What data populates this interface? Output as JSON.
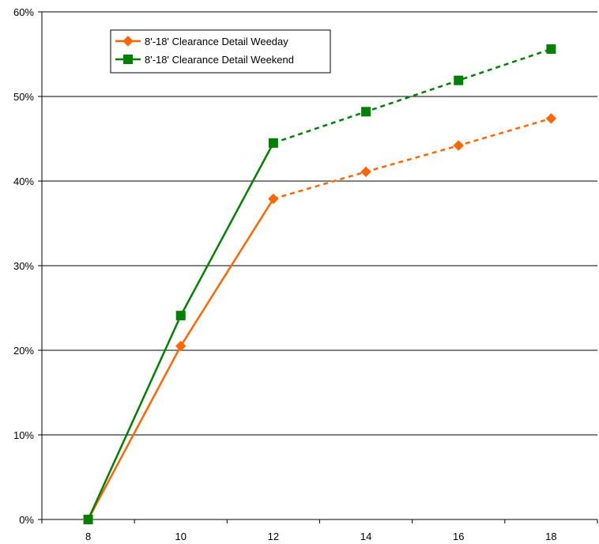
{
  "chart_data": {
    "type": "line",
    "x": [
      8,
      10,
      12,
      14,
      16,
      18
    ],
    "x_ticks": [
      "8",
      "10",
      "12",
      "14",
      "16",
      "18"
    ],
    "y_ticks": [
      "0%",
      "10%",
      "20%",
      "30%",
      "40%",
      "50%",
      "60%"
    ],
    "ylim": [
      0,
      60
    ],
    "xlim": [
      7,
      19
    ],
    "grid": "horizontal",
    "legend_position": "top-left",
    "series": [
      {
        "name": "8'-18' Clearance Detail Weeday",
        "color": "#ff6600",
        "marker": "diamond",
        "values": [
          0,
          20.5,
          37.9,
          41.1,
          44.2,
          47.4
        ],
        "solid_through_x": 12
      },
      {
        "name": "8'-18' Clearance Detail Weekend",
        "color": "#008000",
        "marker": "square",
        "values": [
          0,
          24.1,
          44.5,
          48.2,
          51.9,
          55.6
        ],
        "solid_through_x": 12
      }
    ]
  }
}
